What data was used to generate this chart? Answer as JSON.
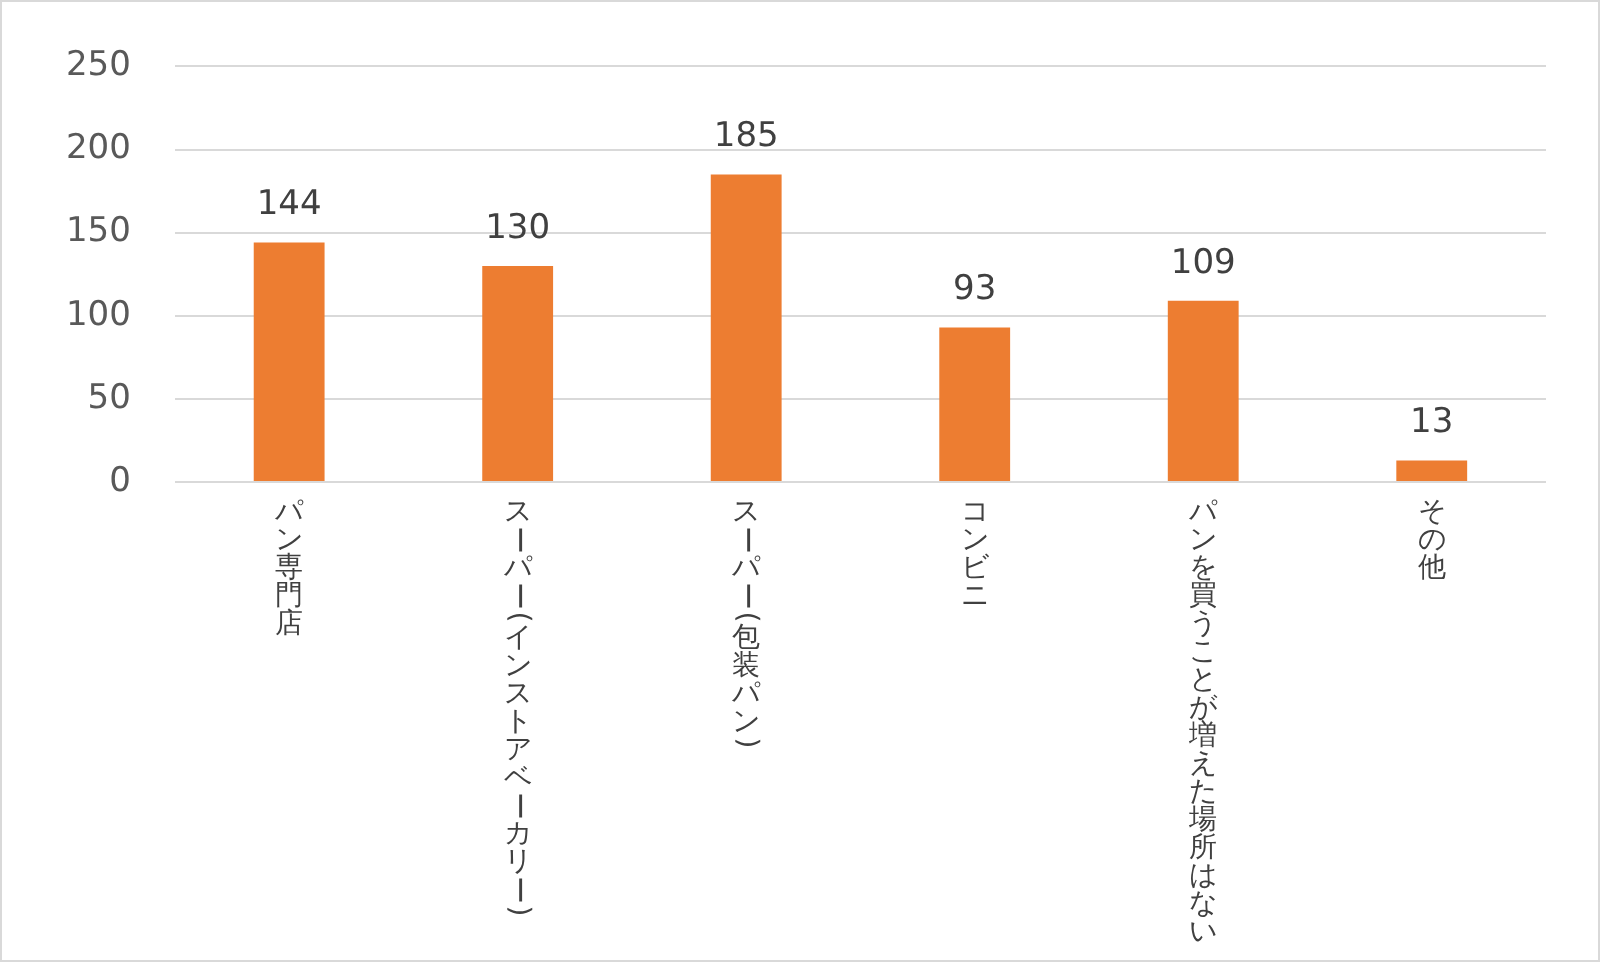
{
  "chart_data": {
    "type": "bar",
    "categories": [
      "パン専門店",
      "スーパー(インストアベーカリー)",
      "スーパー(包装パン)",
      "コンビニ",
      "パンを買うことが増えた場所はない",
      "その他"
    ],
    "values": [
      144,
      130,
      185,
      93,
      109,
      13
    ],
    "color": "#ed7d31",
    "ylim": [
      0,
      250
    ],
    "yticks": [
      0,
      50,
      100,
      150,
      200,
      250
    ],
    "grid": "y",
    "legend": false,
    "data_labels": true
  }
}
